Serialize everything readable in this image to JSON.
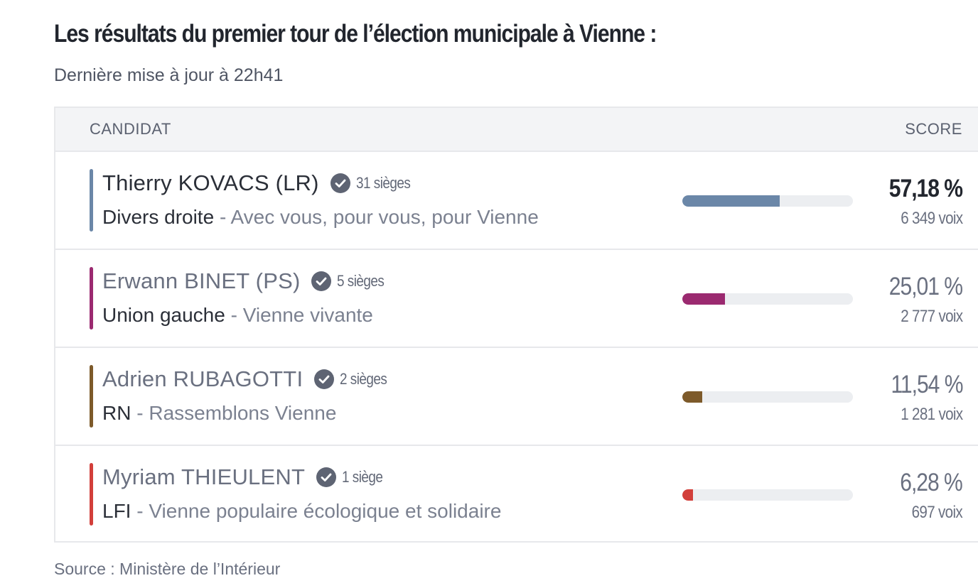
{
  "header": {
    "title": "Les résultats du premier tour de l’élection municipale à Vienne :",
    "subtitle": "Dernière mise à jour à 22h41"
  },
  "table": {
    "col_candidat": "CANDIDAT",
    "col_score": "SCORE",
    "rows": [
      {
        "name": "Thierry KOVACS (LR)",
        "seats": "31 sièges",
        "nuance": "Divers droite",
        "separator": " - ",
        "list": "Avec vous, pour vous, pour Vienne",
        "percent_label": "57,18 %",
        "percent": 57.18,
        "votes": "6 349 voix",
        "color": "#6b87a8",
        "winner": true
      },
      {
        "name": "Erwann BINET (PS)",
        "seats": "5 sièges",
        "nuance": "Union gauche",
        "separator": " - ",
        "list": "Vienne vivante",
        "percent_label": "25,01 %",
        "percent": 25.01,
        "votes": "2 777 voix",
        "color": "#9b2a70",
        "winner": false
      },
      {
        "name": "Adrien RUBAGOTTI",
        "seats": "2 sièges",
        "nuance": "RN",
        "separator": " - ",
        "list": "Rassemblons Vienne",
        "percent_label": "11,54 %",
        "percent": 11.54,
        "votes": "1 281 voix",
        "color": "#7d5a2a",
        "winner": false
      },
      {
        "name": "Myriam THIEULENT",
        "seats": "1 siège",
        "nuance": "LFI",
        "separator": " - ",
        "list": "Vienne populaire écologique et solidaire",
        "percent_label": "6,28 %",
        "percent": 6.28,
        "votes": "697 voix",
        "color": "#d23f3a",
        "winner": false
      }
    ]
  },
  "icons": {
    "elected": "check-circle-icon",
    "check_bg": "#5e6473"
  },
  "footer": {
    "source": "Source : Ministère de l’Intérieur"
  }
}
